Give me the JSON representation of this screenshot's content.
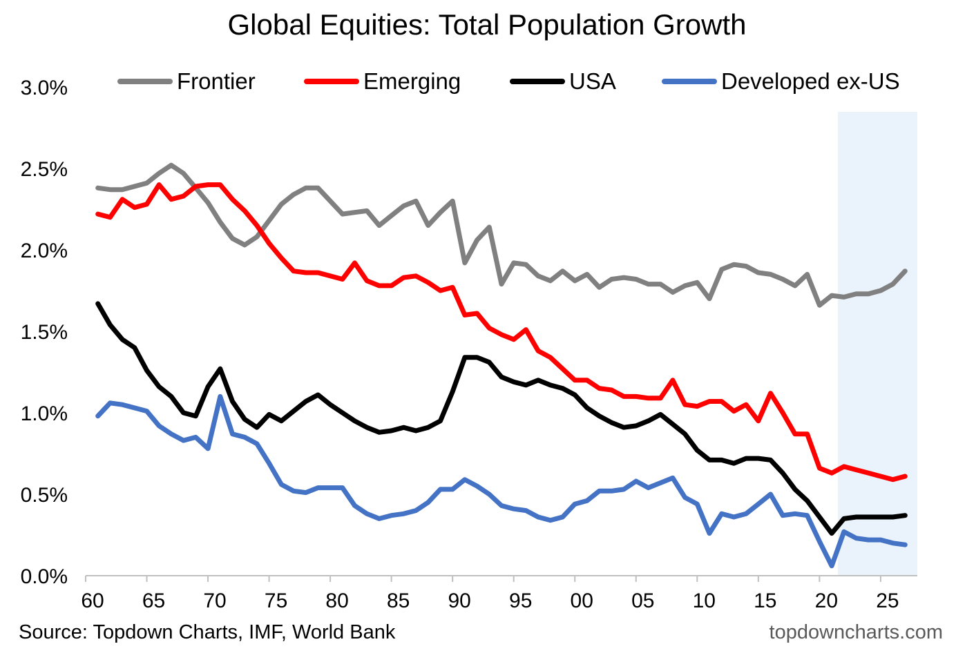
{
  "chart_data": {
    "type": "line",
    "title": "Global Equities: Total Population Growth",
    "source": "Source: Topdown Charts, IMF, World Bank",
    "watermark": "topdowncharts.com",
    "ylim": [
      0,
      3.0
    ],
    "y_ticks": [
      "0.0%",
      "0.5%",
      "1.0%",
      "1.5%",
      "2.0%",
      "2.5%",
      "3.0%"
    ],
    "y_tick_values": [
      0,
      0.5,
      1.0,
      1.5,
      2.0,
      2.5,
      3.0
    ],
    "xlim": [
      1960,
      2028
    ],
    "x_ticks": [
      "60",
      "65",
      "70",
      "75",
      "80",
      "85",
      "90",
      "95",
      "00",
      "05",
      "10",
      "15",
      "20",
      "25"
    ],
    "x_tick_values": [
      1960,
      1965,
      1970,
      1975,
      1980,
      1985,
      1990,
      1995,
      2000,
      2005,
      2010,
      2015,
      2020,
      2025
    ],
    "forecast_shade": [
      2021.5,
      2028
    ],
    "forecast_shade_color": "#eaf3fc",
    "grid": false,
    "legend_position": "top",
    "x": [
      1961,
      1962,
      1963,
      1964,
      1965,
      1966,
      1967,
      1968,
      1969,
      1970,
      1971,
      1972,
      1973,
      1974,
      1975,
      1976,
      1977,
      1978,
      1979,
      1980,
      1981,
      1982,
      1983,
      1984,
      1985,
      1986,
      1987,
      1988,
      1989,
      1990,
      1991,
      1992,
      1993,
      1994,
      1995,
      1996,
      1997,
      1998,
      1999,
      2000,
      2001,
      2002,
      2003,
      2004,
      2005,
      2006,
      2007,
      2008,
      2009,
      2010,
      2011,
      2012,
      2013,
      2014,
      2015,
      2016,
      2017,
      2018,
      2019,
      2020,
      2021,
      2022,
      2023,
      2024,
      2025,
      2026,
      2027
    ],
    "series": [
      {
        "name": "Frontier",
        "color": "#808080",
        "values": [
          2.38,
          2.37,
          2.37,
          2.39,
          2.41,
          2.47,
          2.52,
          2.47,
          2.38,
          2.29,
          2.17,
          2.07,
          2.03,
          2.08,
          2.18,
          2.28,
          2.34,
          2.38,
          2.38,
          2.3,
          2.22,
          2.23,
          2.24,
          2.15,
          2.21,
          2.27,
          2.3,
          2.15,
          2.23,
          2.3,
          1.92,
          2.06,
          2.14,
          1.79,
          1.92,
          1.91,
          1.84,
          1.81,
          1.87,
          1.81,
          1.85,
          1.77,
          1.82,
          1.83,
          1.82,
          1.79,
          1.79,
          1.74,
          1.78,
          1.8,
          1.7,
          1.88,
          1.91,
          1.9,
          1.86,
          1.85,
          1.82,
          1.78,
          1.85,
          1.66,
          1.72,
          1.71,
          1.73,
          1.73,
          1.75,
          1.79,
          1.87
        ]
      },
      {
        "name": "Emerging",
        "color": "#ff0000",
        "values": [
          2.22,
          2.2,
          2.31,
          2.26,
          2.28,
          2.4,
          2.31,
          2.33,
          2.39,
          2.4,
          2.4,
          2.31,
          2.24,
          2.15,
          2.04,
          1.95,
          1.87,
          1.86,
          1.86,
          1.84,
          1.82,
          1.92,
          1.81,
          1.78,
          1.78,
          1.83,
          1.84,
          1.8,
          1.75,
          1.77,
          1.6,
          1.61,
          1.52,
          1.48,
          1.45,
          1.51,
          1.38,
          1.34,
          1.27,
          1.2,
          1.2,
          1.15,
          1.14,
          1.1,
          1.1,
          1.09,
          1.09,
          1.2,
          1.05,
          1.04,
          1.07,
          1.07,
          1.01,
          1.05,
          0.95,
          1.12,
          1.0,
          0.87,
          0.87,
          0.66,
          0.63,
          0.67,
          0.65,
          0.63,
          0.61,
          0.59,
          0.61
        ]
      },
      {
        "name": "USA",
        "color": "#000000",
        "values": [
          1.67,
          1.54,
          1.45,
          1.4,
          1.26,
          1.16,
          1.1,
          1.0,
          0.98,
          1.16,
          1.27,
          1.07,
          0.96,
          0.91,
          0.99,
          0.95,
          1.01,
          1.07,
          1.11,
          1.05,
          1.0,
          0.95,
          0.91,
          0.88,
          0.89,
          0.91,
          0.89,
          0.91,
          0.95,
          1.13,
          1.34,
          1.34,
          1.31,
          1.22,
          1.19,
          1.17,
          1.2,
          1.17,
          1.15,
          1.11,
          1.03,
          0.98,
          0.94,
          0.91,
          0.92,
          0.95,
          0.99,
          0.93,
          0.87,
          0.77,
          0.71,
          0.71,
          0.69,
          0.72,
          0.72,
          0.71,
          0.63,
          0.53,
          0.46,
          0.36,
          0.26,
          0.35,
          0.36,
          0.36,
          0.36,
          0.36,
          0.37
        ]
      },
      {
        "name": "Developed ex-US",
        "color": "#4472c4",
        "values": [
          0.98,
          1.06,
          1.05,
          1.03,
          1.01,
          0.92,
          0.87,
          0.83,
          0.85,
          0.78,
          1.1,
          0.87,
          0.85,
          0.81,
          0.69,
          0.56,
          0.52,
          0.51,
          0.54,
          0.54,
          0.54,
          0.43,
          0.38,
          0.35,
          0.37,
          0.38,
          0.4,
          0.45,
          0.53,
          0.53,
          0.59,
          0.55,
          0.5,
          0.43,
          0.41,
          0.4,
          0.36,
          0.34,
          0.36,
          0.44,
          0.46,
          0.52,
          0.52,
          0.53,
          0.58,
          0.54,
          0.57,
          0.6,
          0.48,
          0.44,
          0.26,
          0.38,
          0.36,
          0.38,
          0.44,
          0.5,
          0.37,
          0.38,
          0.37,
          0.21,
          0.06,
          0.27,
          0.23,
          0.22,
          0.22,
          0.2,
          0.19
        ]
      }
    ]
  }
}
